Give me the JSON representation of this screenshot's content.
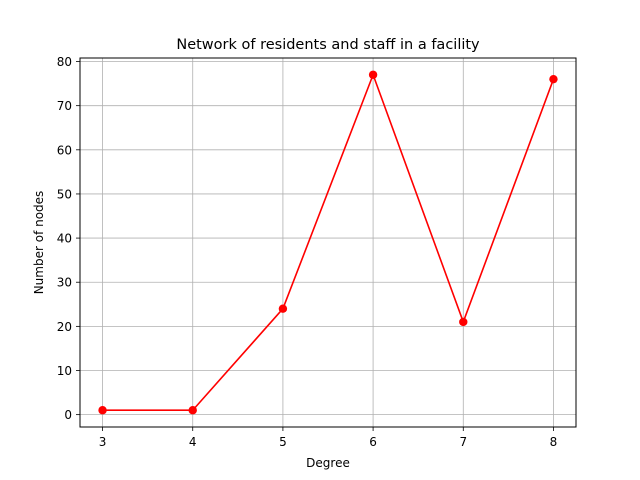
{
  "chart_data": {
    "type": "line",
    "title": "Network of residents and staff in a facility",
    "xlabel": "Degree",
    "ylabel": "Number of nodes",
    "x": [
      3,
      4,
      5,
      6,
      7,
      8
    ],
    "series": [
      {
        "values": [
          1,
          1,
          24,
          77,
          21,
          76
        ],
        "color": "#ff0000",
        "marker": "circle"
      }
    ],
    "xlim": [
      2.75,
      8.25
    ],
    "ylim": [
      -2.8,
      80.8
    ],
    "xticks": [
      3,
      4,
      5,
      6,
      7,
      8
    ],
    "yticks": [
      0,
      10,
      20,
      30,
      40,
      50,
      60,
      70,
      80
    ],
    "grid": true,
    "grid_color": "#b0b0b0"
  }
}
